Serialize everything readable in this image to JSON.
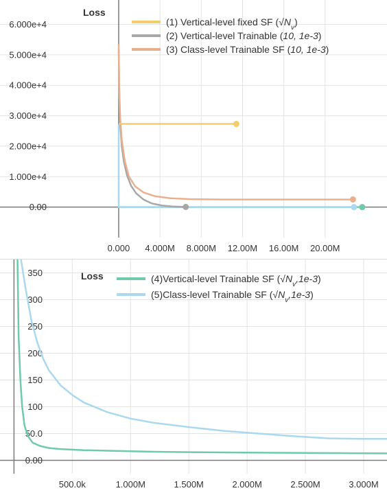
{
  "chart_data": [
    {
      "type": "line",
      "ytitle": "Loss",
      "xlim": [
        -11500000,
        26000000
      ],
      "ylim": [
        -10000,
        68000
      ],
      "yticks": [
        0,
        10000,
        20000,
        30000,
        40000,
        50000,
        60000
      ],
      "ytick_labels": [
        "0.00",
        "1.000e+4",
        "2.000e+4",
        "3.000e+4",
        "4.000e+4",
        "5.000e+4",
        "6.000e+4"
      ],
      "xticks": [
        0,
        4000000,
        8000000,
        12000000,
        16000000,
        20000000
      ],
      "xtick_labels": [
        "0.000",
        "4.000M",
        "8.000M",
        "12.00M",
        "16.00M",
        "20.00M"
      ],
      "grid": true,
      "legend_position": "top-right",
      "series": [
        {
          "name": "(1) Vertical-level fixed SF (√N_v)",
          "legend_main": "(1) Vertical-level fixed SF (",
          "legend_sym": "√N",
          "legend_sub": "v",
          "legend_tail": ")",
          "color": "#f3cd6a",
          "x": [
            0,
            11400000
          ],
          "y": [
            27300,
            27300
          ]
        },
        {
          "name": "(2) Vertical-level Trainable (10, 1e-3)",
          "legend_main": "(2) Vertical-level Trainable (",
          "legend_params": "10, 1e-3",
          "legend_tail": ")",
          "color": "#a7a7a7",
          "x": [
            0,
            50000,
            150000,
            300000,
            500000,
            800000,
            1200000,
            1700000,
            2400000,
            3200000,
            4200000,
            5200000,
            6500000
          ],
          "y": [
            52000,
            38000,
            27000,
            20000,
            15000,
            10500,
            7000,
            4500,
            2500,
            1200,
            500,
            200,
            50
          ]
        },
        {
          "name": "(3) Class-level Trainable SF (10, 1e-3)",
          "legend_main": "(3) Class-level Trainable SF (",
          "legend_params": "10, 1e-3",
          "legend_tail": ")",
          "color": "#e8b08e",
          "x": [
            0,
            50000,
            150000,
            300000,
            600000,
            1000000,
            1600000,
            2400000,
            3500000,
            5000000,
            7000000,
            10000000,
            15000000,
            20000000,
            22700000
          ],
          "y": [
            53500,
            40000,
            29000,
            22000,
            15000,
            10000,
            6800,
            4800,
            3600,
            2900,
            2600,
            2500,
            2500,
            2500,
            2500
          ]
        },
        {
          "name": "(4)Vertical-level Trainable SF (√N_v, 1e-3)",
          "color": "#6fcaa8",
          "x": [
            0,
            23600000
          ],
          "y": [
            0,
            0
          ]
        },
        {
          "name": "(5)Class-level Trainable SF (√N_v, 1e-3)",
          "color": "#a9d8ef",
          "x": [
            0,
            0,
            22800000
          ],
          "y": [
            27000,
            0,
            0
          ]
        }
      ]
    },
    {
      "type": "line",
      "ytitle": "Loss",
      "xlim": [
        -120000,
        3200000
      ],
      "ylim": [
        -25,
        375
      ],
      "yticks": [
        0,
        50,
        100,
        150,
        200,
        250,
        300,
        350
      ],
      "ytick_labels": [
        "0.00",
        "50.0",
        "100",
        "150",
        "200",
        "250",
        "300",
        "350"
      ],
      "xticks": [
        500000,
        1000000,
        1500000,
        2000000,
        2500000,
        3000000
      ],
      "xtick_labels": [
        "500.0k",
        "1.000M",
        "1.500M",
        "2.000M",
        "2.500M",
        "3.000M"
      ],
      "grid": true,
      "legend_position": "top-right",
      "series": [
        {
          "name": "(4)Vertical-level Trainable SF (√N_v, 1e-3)",
          "legend_main": "(4)Vertical-level Trainable SF (",
          "legend_sym": "√N",
          "legend_sub": "v",
          "legend_params": ",1e-3",
          "legend_tail": ")",
          "color": "#6fcaa8",
          "x": [
            30000,
            40000,
            55000,
            70000,
            90000,
            120000,
            160000,
            220000,
            300000,
            400000,
            600000,
            800000,
            1200000,
            1600000,
            2000000,
            2400000,
            2800000,
            3200000
          ],
          "y": [
            375,
            230,
            150,
            100,
            65,
            45,
            33,
            27,
            23,
            21,
            19,
            18,
            16,
            15,
            14.5,
            14,
            13.5,
            13
          ]
        },
        {
          "name": "(5)Class-level Trainable SF (√N_v, 1e-3)",
          "legend_main": "(5)Class-level Trainable SF (",
          "legend_sym": "√N",
          "legend_sub": "v",
          "legend_params": ",1e-3",
          "legend_tail": ")",
          "color": "#a9d8ef",
          "x": [
            60000,
            100000,
            150000,
            200000,
            250000,
            300000,
            400000,
            500000,
            600000,
            800000,
            1000000,
            1200000,
            1500000,
            1800000,
            2100000,
            2400000,
            2700000,
            3000000,
            3200000
          ],
          "y": [
            375,
            320,
            260,
            220,
            190,
            168,
            140,
            122,
            108,
            90,
            78,
            70,
            62,
            55,
            50,
            45,
            41,
            40,
            40
          ]
        }
      ]
    }
  ]
}
